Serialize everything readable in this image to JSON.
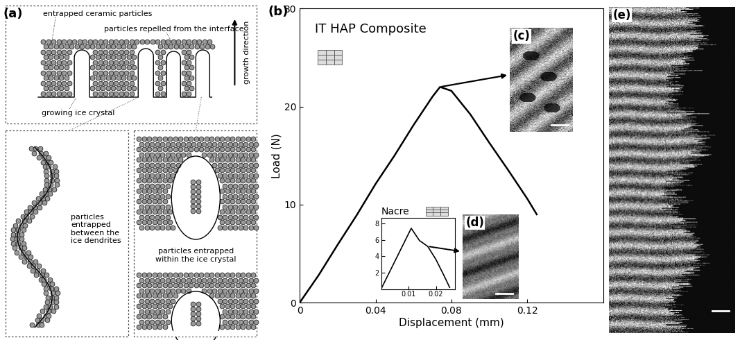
{
  "panel_labels": [
    "(a)",
    "(b)",
    "(c)",
    "(d)",
    "(e)"
  ],
  "diagram": {
    "labels": {
      "entrapped": "entrapped ceramic particles",
      "repelled": "particles repelled from the interface",
      "growth": "growth direction",
      "crystal": "growing ice crystal",
      "between": "particles\nentrapped\nbetween the\nice dendrites",
      "within": "particles entrapped\nwithin the ice crystal"
    }
  },
  "chart_data": [
    {
      "type": "line",
      "title": "IT HAP Composite",
      "x_label": "Displacement (mm)",
      "y_label": "Load (N)",
      "x": [
        0,
        0.01,
        0.02,
        0.03,
        0.04,
        0.05,
        0.06,
        0.07,
        0.074,
        0.08,
        0.09,
        0.1,
        0.11,
        0.12,
        0.125
      ],
      "values": [
        0,
        2.8,
        5.9,
        8.9,
        12.1,
        15.0,
        18.1,
        21.0,
        22.0,
        21.6,
        19.2,
        16.3,
        13.5,
        10.6,
        9.0
      ],
      "color": "#000000",
      "xlim": [
        0,
        0.16
      ],
      "xticks": [
        0,
        0.04,
        0.08,
        0.12
      ],
      "ylim": [
        0,
        30
      ],
      "yticks": [
        0,
        10,
        20,
        30
      ]
    },
    {
      "type": "line",
      "title": "Nacre",
      "x": [
        0,
        0.011,
        0.014,
        0.017,
        0.02,
        0.023,
        0.025
      ],
      "values": [
        0,
        7.4,
        5.9,
        5.2,
        3.6,
        1.6,
        0.2
      ],
      "color": "#000000",
      "xlim": [
        0,
        0.027
      ],
      "xticks": [
        0.01,
        0.02
      ],
      "ylim": [
        0,
        8.7
      ],
      "yticks": [
        2,
        4,
        6,
        8
      ]
    }
  ]
}
